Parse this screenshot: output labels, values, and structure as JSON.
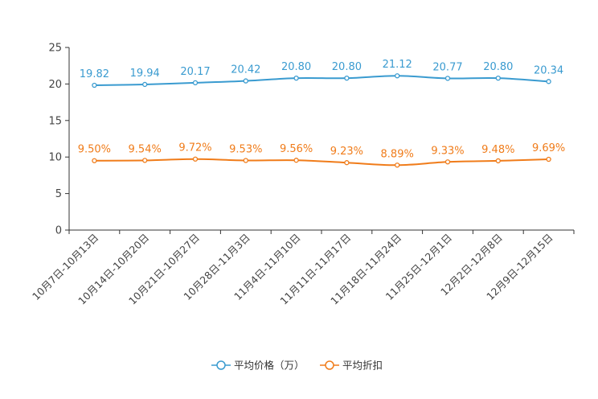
{
  "chart_data": {
    "type": "line",
    "title": "",
    "xlabel": "",
    "ylabel": "",
    "ylim": [
      0,
      25
    ],
    "yticks": [
      0,
      5,
      10,
      15,
      20,
      25
    ],
    "grid": false,
    "legend_position": "bottom-center",
    "categories": [
      "10月7日-10月13日",
      "10月14日-10月20日",
      "10月21日-10月27日",
      "10月28日-11月3日",
      "11月4日-11月10日",
      "11月11日-11月17日",
      "11月18日-11月24日",
      "11月25日-12月1日",
      "12月2日-12月8日",
      "12月9日-12月15日"
    ],
    "series": [
      {
        "name": "平均价格（万）",
        "color": "#3a9bd0",
        "values": [
          19.82,
          19.94,
          20.17,
          20.42,
          20.8,
          20.8,
          21.12,
          20.77,
          20.8,
          20.34
        ],
        "labels": [
          "19.82",
          "19.94",
          "20.17",
          "20.42",
          "20.80",
          "20.80",
          "21.12",
          "20.77",
          "20.80",
          "20.34"
        ]
      },
      {
        "name": "平均折扣",
        "color": "#f07c1a",
        "values": [
          9.5,
          9.54,
          9.72,
          9.53,
          9.56,
          9.23,
          8.89,
          9.33,
          9.48,
          9.69
        ],
        "labels": [
          "9.50%",
          "9.54%",
          "9.72%",
          "9.53%",
          "9.56%",
          "9.23%",
          "8.89%",
          "9.33%",
          "9.48%",
          "9.69%"
        ]
      }
    ]
  }
}
